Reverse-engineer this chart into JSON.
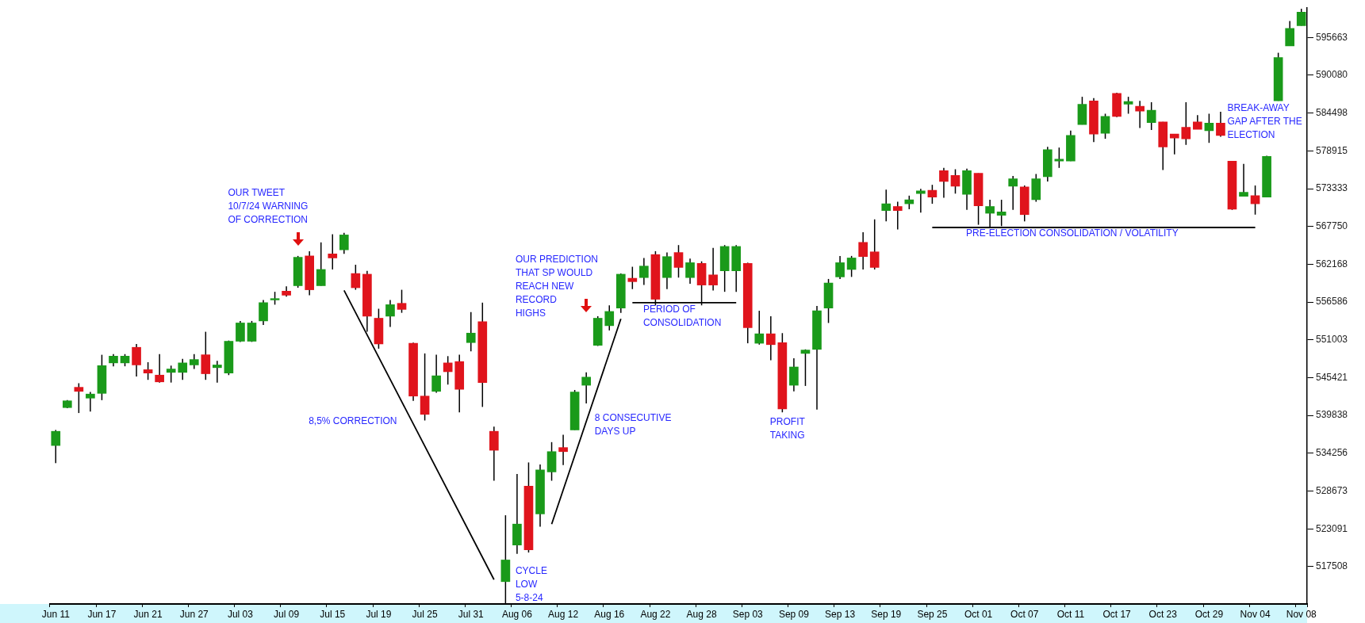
{
  "chart_data": {
    "type": "candlestick",
    "grid": false,
    "legend": false,
    "marker": "none",
    "categories": [
      "Jun 11",
      null,
      null,
      null,
      "Jun 17",
      null,
      null,
      null,
      "Jun 21",
      null,
      null,
      null,
      "Jun 27",
      null,
      null,
      null,
      "Jul 03",
      null,
      null,
      null,
      "Jul 09",
      null,
      null,
      null,
      "Jul 15",
      null,
      null,
      null,
      "Jul 19",
      null,
      null,
      null,
      "Jul 25",
      null,
      null,
      null,
      "Jul 31",
      null,
      null,
      null,
      "Aug 06",
      null,
      null,
      null,
      "Aug 12",
      null,
      null,
      null,
      "Aug 16",
      null,
      null,
      null,
      "Aug 22",
      null,
      null,
      null,
      "Aug 28",
      null,
      null,
      null,
      "Sep 03",
      null,
      null,
      null,
      "Sep 09",
      null,
      null,
      null,
      "Sep 13",
      null,
      null,
      null,
      "Sep 19",
      null,
      null,
      null,
      "Sep 25",
      null,
      null,
      null,
      "Oct 01",
      null,
      null,
      null,
      "Oct 07",
      null,
      null,
      null,
      "Oct 11",
      null,
      null,
      null,
      "Oct 17",
      null,
      null,
      null,
      "Oct 23",
      null,
      null,
      null,
      "Oct 29",
      null,
      null,
      null,
      "Nov 04",
      null,
      null,
      null,
      "Nov 08"
    ],
    "ohlc": [
      [
        535400,
        537700,
        532800,
        537500
      ],
      [
        541000,
        542100,
        540900,
        542000
      ],
      [
        544000,
        544600,
        540200,
        543400
      ],
      [
        542400,
        543300,
        540400,
        543000
      ],
      [
        543100,
        548800,
        542100,
        547200
      ],
      [
        547600,
        548900,
        547100,
        548600
      ],
      [
        547600,
        548900,
        547100,
        548600
      ],
      [
        549900,
        550400,
        545600,
        547300
      ],
      [
        546600,
        547700,
        545100,
        546100
      ],
      [
        545800,
        548900,
        544700,
        544800
      ],
      [
        546200,
        547200,
        544700,
        546700
      ],
      [
        546200,
        548200,
        545100,
        547600
      ],
      [
        547300,
        548900,
        546700,
        548100
      ],
      [
        548800,
        552200,
        545100,
        546000
      ],
      [
        546900,
        547900,
        544700,
        547300
      ],
      [
        546100,
        550900,
        545800,
        550800
      ],
      [
        550800,
        553800,
        550700,
        553500
      ],
      [
        550800,
        553800,
        550700,
        553500
      ],
      [
        553800,
        556900,
        553200,
        556500
      ],
      [
        556900,
        558100,
        556200,
        557100
      ],
      [
        558200,
        558900,
        557400,
        557600
      ],
      [
        559000,
        563400,
        558700,
        563200
      ],
      [
        563400,
        564100,
        557600,
        558400
      ],
      [
        559000,
        565400,
        559000,
        561400
      ],
      [
        563700,
        566600,
        561400,
        563100
      ],
      [
        564300,
        566800,
        563700,
        566500
      ],
      [
        560800,
        562100,
        558400,
        558700
      ],
      [
        560700,
        561200,
        552200,
        554500
      ],
      [
        554200,
        555600,
        549700,
        550400
      ],
      [
        554500,
        556900,
        552900,
        556200
      ],
      [
        556400,
        558400,
        555000,
        555500
      ],
      [
        550500,
        550600,
        542000,
        542700
      ],
      [
        542700,
        549000,
        539100,
        540000
      ],
      [
        543400,
        548800,
        543200,
        545700
      ],
      [
        547600,
        548600,
        544400,
        546300
      ],
      [
        547800,
        548800,
        540300,
        543700
      ],
      [
        550600,
        555100,
        549300,
        552000
      ],
      [
        553700,
        556500,
        541100,
        544700
      ],
      [
        537500,
        538200,
        530200,
        534700
      ],
      [
        515300,
        525100,
        512100,
        518500
      ],
      [
        520700,
        531200,
        519400,
        523800
      ],
      [
        529400,
        532900,
        519600,
        520000
      ],
      [
        525300,
        532600,
        523400,
        531800
      ],
      [
        531500,
        535900,
        530200,
        534500
      ],
      [
        535100,
        537000,
        532500,
        534500
      ],
      [
        537700,
        543600,
        537700,
        543300
      ],
      [
        544300,
        546200,
        541600,
        545500
      ],
      [
        550200,
        554500,
        550100,
        554200
      ],
      [
        553100,
        556100,
        552400,
        555200
      ],
      [
        555700,
        560800,
        555000,
        560700
      ],
      [
        560100,
        561800,
        558500,
        559600
      ],
      [
        560200,
        563100,
        559100,
        561900
      ],
      [
        563600,
        564100,
        556100,
        557000
      ],
      [
        560200,
        563900,
        558500,
        563300
      ],
      [
        563900,
        565000,
        560200,
        561700
      ],
      [
        560200,
        563000,
        559300,
        562400
      ],
      [
        562300,
        562600,
        556100,
        559100
      ],
      [
        560600,
        564600,
        558300,
        559100
      ],
      [
        561200,
        565000,
        558100,
        564800
      ],
      [
        561200,
        565000,
        558100,
        564800
      ],
      [
        562300,
        562400,
        550500,
        552800
      ],
      [
        550500,
        555300,
        550300,
        551900
      ],
      [
        551900,
        554500,
        548000,
        550300
      ],
      [
        550600,
        552000,
        540300,
        540800
      ],
      [
        544300,
        548300,
        543400,
        547000
      ],
      [
        549000,
        549600,
        544200,
        549500
      ],
      [
        549600,
        556000,
        540700,
        555300
      ],
      [
        555700,
        560000,
        553500,
        559400
      ],
      [
        560300,
        563400,
        560000,
        562400
      ],
      [
        561400,
        563400,
        560300,
        563100
      ],
      [
        565400,
        566900,
        561400,
        563300
      ],
      [
        564000,
        568800,
        561400,
        561700
      ],
      [
        570100,
        573200,
        568500,
        571100
      ],
      [
        570700,
        571400,
        567300,
        570100
      ],
      [
        571100,
        572300,
        570300,
        571700
      ],
      [
        572600,
        573300,
        569800,
        573000
      ],
      [
        573100,
        573900,
        571100,
        572100
      ],
      [
        576000,
        576400,
        572000,
        574400
      ],
      [
        575300,
        576200,
        572600,
        573700
      ],
      [
        572500,
        576300,
        570200,
        576000
      ],
      [
        575600,
        575600,
        568000,
        570800
      ],
      [
        569700,
        571700,
        567500,
        570700
      ],
      [
        569400,
        571700,
        567800,
        569900
      ],
      [
        573700,
        575200,
        570200,
        574800
      ],
      [
        573600,
        573800,
        568500,
        569500
      ],
      [
        571700,
        575500,
        571400,
        574800
      ],
      [
        575100,
        579500,
        574400,
        579100
      ],
      [
        577400,
        579400,
        576400,
        577700
      ],
      [
        577400,
        581900,
        577400,
        581200
      ],
      [
        582800,
        586900,
        582800,
        585800
      ],
      [
        586300,
        586700,
        580200,
        581400
      ],
      [
        581500,
        584400,
        580700,
        584000
      ],
      [
        587400,
        587500,
        583900,
        584000
      ],
      [
        585800,
        586900,
        584400,
        586200
      ],
      [
        585500,
        586300,
        582300,
        584800
      ],
      [
        583100,
        586100,
        582000,
        584900
      ],
      [
        583200,
        583200,
        576100,
        579500
      ],
      [
        581400,
        581400,
        578400,
        580800
      ],
      [
        582400,
        586100,
        579800,
        580700
      ],
      [
        583200,
        584200,
        582100,
        582100
      ],
      [
        581900,
        584400,
        580100,
        583000
      ],
      [
        583000,
        584700,
        581000,
        581200
      ],
      [
        577400,
        577400,
        570200,
        570300
      ],
      [
        572200,
        577000,
        572200,
        572800
      ],
      [
        572300,
        573800,
        569500,
        571100
      ],
      [
        572100,
        578200,
        572100,
        578100
      ],
      [
        586300,
        593400,
        586300,
        592700
      ],
      [
        594400,
        598100,
        594400,
        597000
      ],
      [
        597400,
        599900,
        597400,
        599400
      ]
    ],
    "colors": [
      "#1a9a1a",
      "#1a9a1a",
      "#e0141c",
      "#1a9a1a",
      "#1a9a1a",
      "#1a9a1a",
      "#1a9a1a",
      "#e0141c",
      "#e0141c",
      "#e0141c",
      "#1a9a1a",
      "#1a9a1a",
      "#1a9a1a",
      "#e0141c",
      "#1a9a1a",
      "#1a9a1a",
      "#1a9a1a",
      "#1a9a1a",
      "#1a9a1a",
      "#1a9a1a",
      "#e0141c",
      "#1a9a1a",
      "#e0141c",
      "#1a9a1a",
      "#e0141c",
      "#1a9a1a",
      "#e0141c",
      "#e0141c",
      "#e0141c",
      "#1a9a1a",
      "#e0141c",
      "#e0141c",
      "#e0141c",
      "#1a9a1a",
      "#e0141c",
      "#e0141c",
      "#1a9a1a",
      "#e0141c",
      "#e0141c",
      "#1a9a1a",
      "#1a9a1a",
      "#e0141c",
      "#1a9a1a",
      "#1a9a1a",
      "#e0141c",
      "#1a9a1a",
      "#1a9a1a",
      "#1a9a1a",
      "#1a9a1a",
      "#1a9a1a",
      "#e0141c",
      "#1a9a1a",
      "#e0141c",
      "#1a9a1a",
      "#e0141c",
      "#1a9a1a",
      "#e0141c",
      "#e0141c",
      "#1a9a1a",
      "#1a9a1a",
      "#e0141c",
      "#1a9a1a",
      "#e0141c",
      "#e0141c",
      "#1a9a1a",
      "#1a9a1a",
      "#1a9a1a",
      "#1a9a1a",
      "#1a9a1a",
      "#1a9a1a",
      "#e0141c",
      "#e0141c",
      "#1a9a1a",
      "#e0141c",
      "#1a9a1a",
      "#1a9a1a",
      "#e0141c",
      "#e0141c",
      "#e0141c",
      "#1a9a1a",
      "#e0141c",
      "#1a9a1a",
      "#1a9a1a",
      "#1a9a1a",
      "#e0141c",
      "#1a9a1a",
      "#1a9a1a",
      "#1a9a1a",
      "#1a9a1a",
      "#1a9a1a",
      "#e0141c",
      "#1a9a1a",
      "#e0141c",
      "#1a9a1a",
      "#e0141c",
      "#1a9a1a",
      "#e0141c",
      "#e0141c",
      "#e0141c",
      "#e0141c",
      "#1a9a1a",
      "#e0141c",
      "#e0141c",
      "#1a9a1a",
      "#e0141c",
      "#1a9a1a",
      "#1a9a1a",
      "#1a9a1a",
      "#1a9a1a"
    ],
    "series": [
      {
        "type": "line",
        "color": "#000000",
        "values": [
          null,
          null,
          null,
          null,
          null,
          null,
          null,
          null,
          null,
          null,
          null,
          null,
          null,
          null,
          null,
          null,
          null,
          null,
          null,
          null,
          null,
          null,
          null,
          null,
          null,
          558300,
          null,
          null,
          null,
          null,
          null,
          null,
          null,
          null,
          null,
          null,
          null,
          null,
          515600,
          null,
          null,
          null,
          null,
          null,
          null,
          null,
          null,
          null,
          null,
          null,
          null,
          null,
          null,
          null,
          null,
          null,
          null,
          null,
          null,
          null,
          null,
          null,
          null,
          null,
          null,
          null,
          null,
          null,
          null,
          null,
          null,
          null,
          null,
          null,
          null,
          null,
          null,
          null,
          null,
          null,
          null,
          null,
          null,
          null,
          null,
          null,
          null,
          null,
          null,
          null,
          null,
          null,
          null,
          null,
          null,
          null,
          null,
          null,
          null,
          null,
          null,
          null,
          null,
          null,
          null,
          null,
          null,
          null,
          null
        ]
      },
      {
        "type": "line",
        "color": "#000000",
        "values": [
          null,
          null,
          null,
          null,
          null,
          null,
          null,
          null,
          null,
          null,
          null,
          null,
          null,
          null,
          null,
          null,
          null,
          null,
          null,
          null,
          null,
          null,
          null,
          null,
          null,
          null,
          null,
          null,
          null,
          null,
          null,
          null,
          null,
          null,
          null,
          null,
          null,
          null,
          null,
          null,
          null,
          null,
          null,
          523800,
          null,
          null,
          null,
          null,
          null,
          554100,
          null,
          null,
          null,
          null,
          null,
          null,
          null,
          null,
          null,
          null,
          null,
          null,
          null,
          null,
          null,
          null,
          null,
          null,
          null,
          null,
          null,
          null,
          null,
          null,
          null,
          null,
          null,
          null,
          null,
          null,
          null,
          null,
          null,
          null,
          null,
          null,
          null,
          null,
          null,
          null,
          null,
          null,
          null,
          null,
          null,
          null,
          null,
          null,
          null,
          null,
          null,
          null,
          null,
          null,
          null,
          null,
          null,
          null,
          null
        ]
      },
      {
        "type": "line",
        "color": "#000000",
        "values": [
          null,
          null,
          null,
          null,
          null,
          null,
          null,
          null,
          null,
          null,
          null,
          null,
          null,
          null,
          null,
          null,
          null,
          null,
          null,
          null,
          null,
          null,
          null,
          null,
          null,
          null,
          null,
          null,
          null,
          null,
          null,
          null,
          null,
          null,
          null,
          null,
          null,
          null,
          null,
          null,
          null,
          null,
          null,
          null,
          null,
          null,
          null,
          null,
          null,
          null,
          556500,
          null,
          null,
          null,
          null,
          null,
          null,
          null,
          null,
          556500,
          null,
          null,
          null,
          null,
          null,
          null,
          null,
          null,
          null,
          null,
          null,
          null,
          null,
          null,
          null,
          null,
          null,
          null,
          null,
          null,
          null,
          null,
          null,
          null,
          null,
          null,
          null,
          null,
          null,
          null,
          null,
          null,
          null,
          null,
          null,
          null,
          null,
          null,
          null,
          null,
          null,
          null,
          null,
          null,
          null,
          null,
          null,
          null,
          null
        ]
      },
      {
        "type": "line",
        "color": "#000000",
        "values": [
          null,
          null,
          null,
          null,
          null,
          null,
          null,
          null,
          null,
          null,
          null,
          null,
          null,
          null,
          null,
          null,
          null,
          null,
          null,
          null,
          null,
          null,
          null,
          null,
          null,
          null,
          null,
          null,
          null,
          null,
          null,
          null,
          null,
          null,
          null,
          null,
          null,
          null,
          null,
          null,
          null,
          null,
          null,
          null,
          null,
          null,
          null,
          null,
          null,
          null,
          null,
          null,
          null,
          null,
          null,
          null,
          null,
          null,
          null,
          null,
          null,
          null,
          null,
          null,
          null,
          null,
          null,
          null,
          null,
          null,
          null,
          null,
          null,
          null,
          null,
          null,
          567600,
          null,
          null,
          null,
          null,
          null,
          null,
          null,
          null,
          null,
          null,
          null,
          null,
          null,
          null,
          null,
          null,
          null,
          null,
          null,
          null,
          null,
          null,
          null,
          null,
          null,
          null,
          null,
          567600,
          null,
          null,
          null,
          null
        ]
      }
    ],
    "ylim": [
      512000,
      600000
    ],
    "yticks": [
      517508,
      523091,
      528673,
      534256,
      539838,
      545421,
      551003,
      556586,
      562168,
      567750,
      573333,
      578915,
      584498,
      590080,
      595663
    ],
    "annotations": [
      "OUR TWEET\n10/7/24 WARNING\nOF CORRECTION",
      "8,5% CORRECTION",
      "CYCLE\nLOW\n5-8-24",
      "OUR PREDICTION\nTHAT SP WOULD\nREACH NEW\nRECORD\nHIGHS",
      "8 CONSECUTIVE\nDAYS UP",
      "PERIOD OF\nCONSOLIDATION",
      "PROFIT\nTAKING",
      "PRE-ELECTION CONSOLIDATION / VOLATILITY",
      "BREAK-AWAY\nGAP AFTER THE\nELECTION"
    ]
  }
}
